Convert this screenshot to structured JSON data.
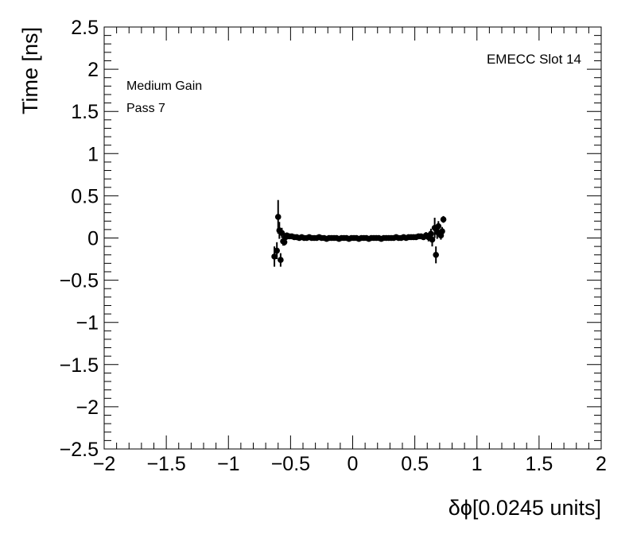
{
  "chart_data": {
    "type": "scatter",
    "xlabel": "δϕ[0.0245 units]",
    "ylabel": "Time [ns]",
    "xlim": [
      -2,
      2
    ],
    "ylim": [
      -2.5,
      2.5
    ],
    "x_tick_labels": [
      "−2",
      "−1.5",
      "−1",
      "−0.5",
      "0",
      "0.5",
      "1",
      "1.5",
      "2"
    ],
    "y_tick_labels": [
      "−2.5",
      "−2",
      "−1.5",
      "−1",
      "−0.5",
      "0",
      "0.5",
      "1",
      "1.5",
      "2",
      "2.5"
    ],
    "grid": false,
    "annotations": {
      "gain": "Medium Gain",
      "pass": "Pass 7",
      "slot": "EMECC Slot 14"
    },
    "series": [
      {
        "marker": "filled-circle",
        "color": "#000000",
        "points": [
          {
            "x": -0.63,
            "y": -0.22,
            "err": 0.12
          },
          {
            "x": -0.61,
            "y": -0.15,
            "err": 0.1
          },
          {
            "x": -0.6,
            "y": 0.25,
            "err": 0.2
          },
          {
            "x": -0.59,
            "y": 0.09,
            "err": 0.1
          },
          {
            "x": -0.58,
            "y": -0.26,
            "err": 0.08
          },
          {
            "x": -0.57,
            "y": 0.06,
            "err": 0.06
          },
          {
            "x": -0.56,
            "y": -0.04,
            "err": 0.05
          },
          {
            "x": -0.55,
            "y": -0.05,
            "err": 0.04
          },
          {
            "x": -0.54,
            "y": 0.01,
            "err": 0.04
          },
          {
            "x": -0.53,
            "y": 0.03,
            "err": 0.03
          },
          {
            "x": -0.51,
            "y": 0.02,
            "err": 0.03
          },
          {
            "x": -0.49,
            "y": 0.02,
            "err": 0.02
          },
          {
            "x": -0.47,
            "y": 0.01,
            "err": 0.02
          },
          {
            "x": -0.45,
            "y": 0.01,
            "err": 0.02
          },
          {
            "x": -0.43,
            "y": 0.0,
            "err": 0.02
          },
          {
            "x": -0.41,
            "y": 0.01,
            "err": 0.02
          },
          {
            "x": -0.39,
            "y": 0.0,
            "err": 0.02
          },
          {
            "x": -0.37,
            "y": 0.0,
            "err": 0.02
          },
          {
            "x": -0.35,
            "y": 0.01,
            "err": 0.02
          },
          {
            "x": -0.33,
            "y": 0.0,
            "err": 0.02
          },
          {
            "x": -0.31,
            "y": 0.0,
            "err": 0.02
          },
          {
            "x": -0.29,
            "y": 0.0,
            "err": 0.02
          },
          {
            "x": -0.27,
            "y": 0.01,
            "err": 0.02
          },
          {
            "x": -0.25,
            "y": 0.0,
            "err": 0.02
          },
          {
            "x": -0.23,
            "y": 0.0,
            "err": 0.02
          },
          {
            "x": -0.21,
            "y": -0.01,
            "err": 0.02
          },
          {
            "x": -0.19,
            "y": 0.0,
            "err": 0.02
          },
          {
            "x": -0.17,
            "y": 0.0,
            "err": 0.02
          },
          {
            "x": -0.15,
            "y": 0.0,
            "err": 0.02
          },
          {
            "x": -0.13,
            "y": 0.0,
            "err": 0.02
          },
          {
            "x": -0.11,
            "y": -0.01,
            "err": 0.02
          },
          {
            "x": -0.09,
            "y": 0.0,
            "err": 0.02
          },
          {
            "x": -0.07,
            "y": 0.0,
            "err": 0.02
          },
          {
            "x": -0.05,
            "y": 0.0,
            "err": 0.02
          },
          {
            "x": -0.03,
            "y": -0.01,
            "err": 0.02
          },
          {
            "x": -0.01,
            "y": 0.0,
            "err": 0.02
          },
          {
            "x": 0.01,
            "y": 0.0,
            "err": 0.02
          },
          {
            "x": 0.03,
            "y": 0.0,
            "err": 0.02
          },
          {
            "x": 0.05,
            "y": -0.01,
            "err": 0.02
          },
          {
            "x": 0.07,
            "y": 0.0,
            "err": 0.02
          },
          {
            "x": 0.09,
            "y": 0.0,
            "err": 0.02
          },
          {
            "x": 0.11,
            "y": 0.0,
            "err": 0.02
          },
          {
            "x": 0.13,
            "y": -0.01,
            "err": 0.02
          },
          {
            "x": 0.15,
            "y": 0.0,
            "err": 0.02
          },
          {
            "x": 0.17,
            "y": 0.0,
            "err": 0.02
          },
          {
            "x": 0.19,
            "y": 0.0,
            "err": 0.02
          },
          {
            "x": 0.21,
            "y": 0.0,
            "err": 0.02
          },
          {
            "x": 0.23,
            "y": -0.01,
            "err": 0.02
          },
          {
            "x": 0.25,
            "y": 0.0,
            "err": 0.02
          },
          {
            "x": 0.27,
            "y": 0.0,
            "err": 0.02
          },
          {
            "x": 0.29,
            "y": 0.0,
            "err": 0.02
          },
          {
            "x": 0.31,
            "y": 0.0,
            "err": 0.02
          },
          {
            "x": 0.33,
            "y": 0.0,
            "err": 0.02
          },
          {
            "x": 0.35,
            "y": 0.01,
            "err": 0.02
          },
          {
            "x": 0.37,
            "y": 0.0,
            "err": 0.02
          },
          {
            "x": 0.39,
            "y": 0.0,
            "err": 0.02
          },
          {
            "x": 0.41,
            "y": 0.01,
            "err": 0.02
          },
          {
            "x": 0.43,
            "y": 0.0,
            "err": 0.02
          },
          {
            "x": 0.45,
            "y": 0.01,
            "err": 0.02
          },
          {
            "x": 0.47,
            "y": 0.01,
            "err": 0.02
          },
          {
            "x": 0.49,
            "y": 0.01,
            "err": 0.02
          },
          {
            "x": 0.51,
            "y": 0.01,
            "err": 0.02
          },
          {
            "x": 0.53,
            "y": 0.02,
            "err": 0.02
          },
          {
            "x": 0.55,
            "y": 0.02,
            "err": 0.03
          },
          {
            "x": 0.57,
            "y": 0.01,
            "err": 0.03
          },
          {
            "x": 0.59,
            "y": 0.03,
            "err": 0.04
          },
          {
            "x": 0.61,
            "y": 0.01,
            "err": 0.05
          },
          {
            "x": 0.63,
            "y": 0.05,
            "err": 0.06
          },
          {
            "x": 0.64,
            "y": -0.02,
            "err": 0.08
          },
          {
            "x": 0.66,
            "y": 0.12,
            "err": 0.12
          },
          {
            "x": 0.67,
            "y": -0.2,
            "err": 0.1
          },
          {
            "x": 0.68,
            "y": 0.07,
            "err": 0.08
          },
          {
            "x": 0.69,
            "y": 0.14,
            "err": 0.06
          },
          {
            "x": 0.71,
            "y": 0.03,
            "err": 0.05
          },
          {
            "x": 0.72,
            "y": 0.08,
            "err": 0.05
          },
          {
            "x": 0.73,
            "y": 0.22,
            "err": 0.04
          }
        ]
      }
    ]
  }
}
